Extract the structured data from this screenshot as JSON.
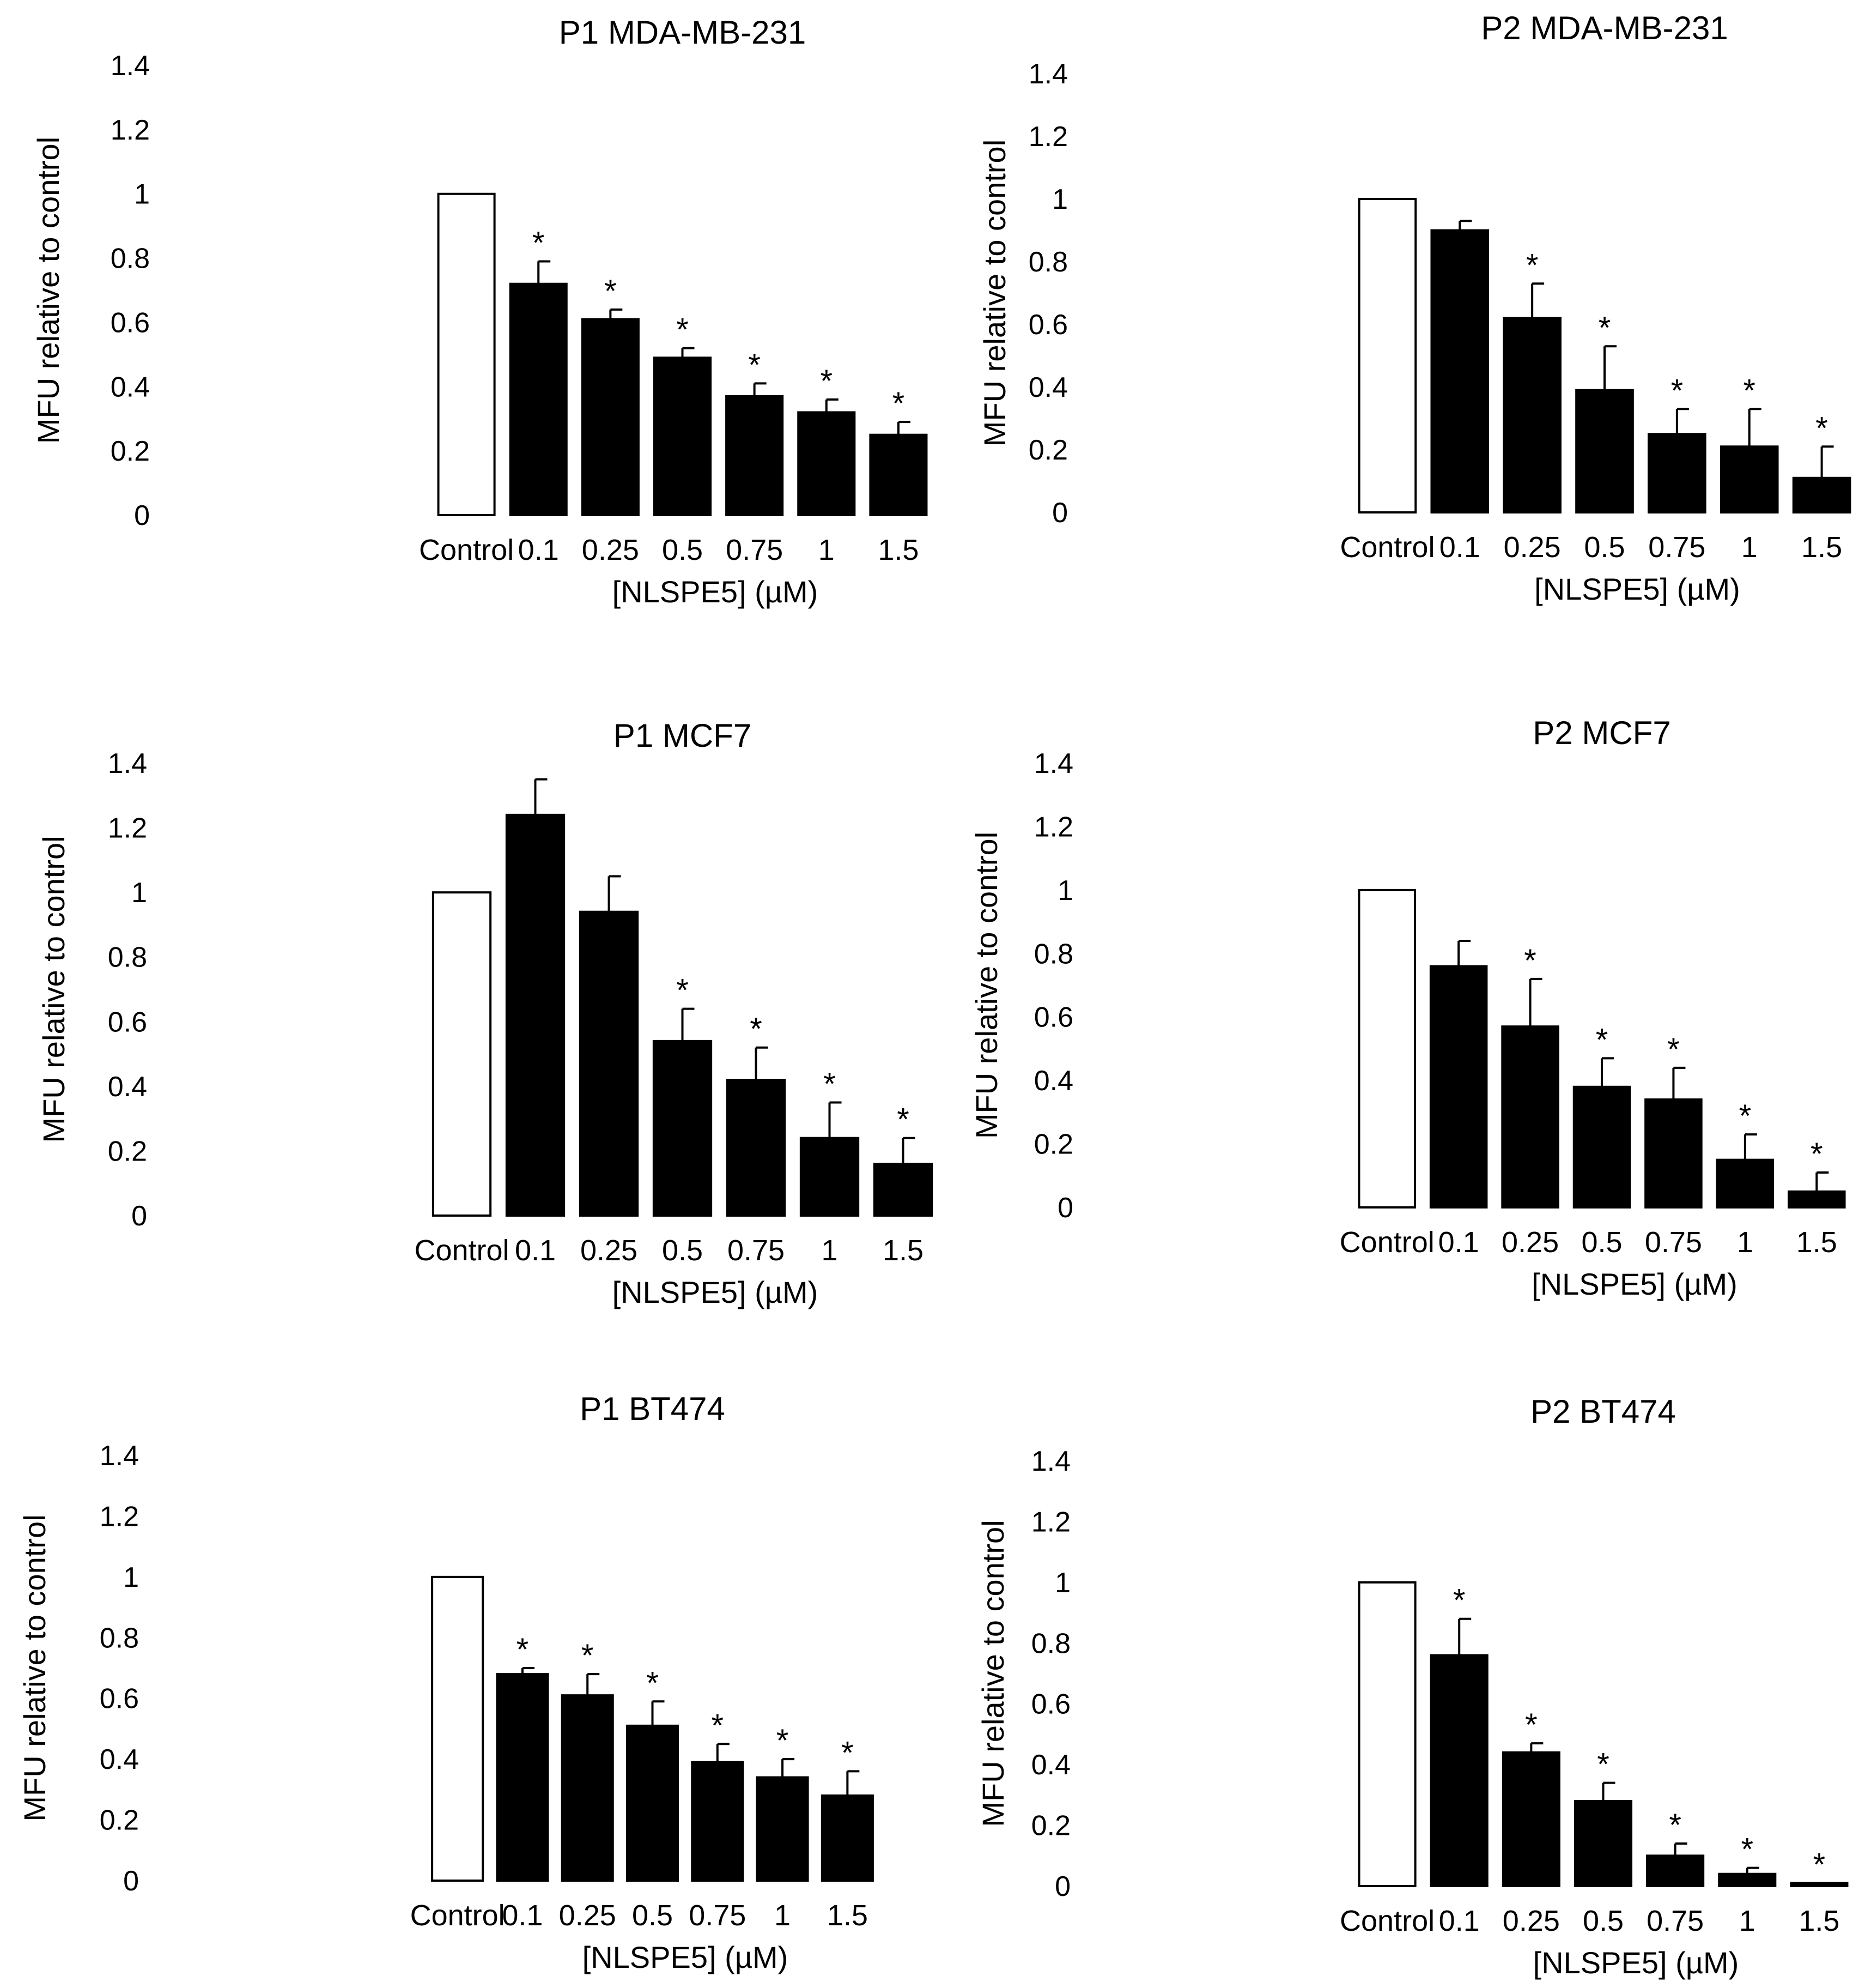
{
  "colors": {
    "control_fill": "#ffffff",
    "bar_fill": "#000000",
    "stroke": "#000000",
    "background": "#ffffff"
  },
  "chart_data": [
    {
      "id": "p1-mda",
      "type": "bar",
      "title": "P1 MDA-MB-231",
      "xlabel": "[NLSPE5] (µM)",
      "ylabel": "MFU relative to control",
      "ylim": [
        0,
        1.4
      ],
      "yticks": [
        "0",
        "0.2",
        "0.4",
        "0.6",
        "0.8",
        "1",
        "1.2",
        "1.4"
      ],
      "categories": [
        "Control",
        "0.1",
        "0.25",
        "0.5",
        "0.75",
        "1",
        "1.5"
      ],
      "values": [
        1.0,
        0.72,
        0.61,
        0.49,
        0.37,
        0.32,
        0.25
      ],
      "errors": [
        0,
        0.07,
        0.03,
        0.03,
        0.04,
        0.04,
        0.04
      ],
      "significant": [
        false,
        true,
        true,
        true,
        true,
        true,
        true
      ]
    },
    {
      "id": "p2-mda",
      "type": "bar",
      "title": "P2 MDA-MB-231",
      "xlabel": "[NLSPE5] (µM)",
      "ylabel": "MFU relative to control",
      "ylim": [
        0,
        1.4
      ],
      "yticks": [
        "0",
        "0.2",
        "0.4",
        "0.6",
        "0.8",
        "1",
        "1.2",
        "1.4"
      ],
      "categories": [
        "Control",
        "0.1",
        "0.25",
        "0.5",
        "0.75",
        "1",
        "1.5"
      ],
      "values": [
        1.0,
        0.9,
        0.62,
        0.39,
        0.25,
        0.21,
        0.11
      ],
      "errors": [
        0,
        0.03,
        0.11,
        0.14,
        0.08,
        0.12,
        0.1
      ],
      "significant": [
        false,
        false,
        true,
        true,
        true,
        true,
        true
      ]
    },
    {
      "id": "p1-mcf7",
      "type": "bar",
      "title": "P1 MCF7",
      "xlabel": "[NLSPE5] (µM)",
      "ylabel": "MFU relative to control",
      "ylim": [
        0,
        1.4
      ],
      "yticks": [
        "0",
        "0.2",
        "0.4",
        "0.6",
        "0.8",
        "1",
        "1.2",
        "1.4"
      ],
      "categories": [
        "Control",
        "0.1",
        "0.25",
        "0.5",
        "0.75",
        "1",
        "1.5"
      ],
      "values": [
        1.0,
        1.24,
        0.94,
        0.54,
        0.42,
        0.24,
        0.16
      ],
      "errors": [
        0,
        0.11,
        0.11,
        0.1,
        0.1,
        0.11,
        0.08
      ],
      "significant": [
        false,
        false,
        false,
        true,
        true,
        true,
        true
      ]
    },
    {
      "id": "p2-mcf7",
      "type": "bar",
      "title": "P2 MCF7",
      "xlabel": "[NLSPE5] (µM)",
      "ylabel": "MFU relative to control",
      "ylim": [
        0,
        1.4
      ],
      "yticks": [
        "0",
        "0.2",
        "0.4",
        "0.6",
        "0.8",
        "1",
        "1.2",
        "1.4"
      ],
      "categories": [
        "Control",
        "0.1",
        "0.25",
        "0.5",
        "0.75",
        "1",
        "1.5"
      ],
      "values": [
        1.0,
        0.76,
        0.57,
        0.38,
        0.34,
        0.15,
        0.05
      ],
      "errors": [
        0,
        0.08,
        0.15,
        0.09,
        0.1,
        0.08,
        0.06
      ],
      "significant": [
        false,
        false,
        true,
        true,
        true,
        true,
        true
      ]
    },
    {
      "id": "p1-bt474",
      "type": "bar",
      "title": "P1 BT474",
      "xlabel": "[NLSPE5] (µM)",
      "ylabel": "MFU relative to control",
      "ylim": [
        0,
        1.4
      ],
      "yticks": [
        "0",
        "0.2",
        "0.4",
        "0.6",
        "0.8",
        "1",
        "1.2",
        "1.4"
      ],
      "categories": [
        "Control",
        "0.1",
        "0.25",
        "0.5",
        "0.75",
        "1",
        "1.5"
      ],
      "values": [
        1.0,
        0.68,
        0.61,
        0.51,
        0.39,
        0.34,
        0.28
      ],
      "errors": [
        0,
        0.02,
        0.07,
        0.08,
        0.06,
        0.06,
        0.08
      ],
      "significant": [
        false,
        true,
        true,
        true,
        true,
        true,
        true
      ]
    },
    {
      "id": "p2-bt474",
      "type": "bar",
      "title": "P2 BT474",
      "xlabel": "[NLSPE5] (µM)",
      "ylabel": "MFU relative to control",
      "ylim": [
        0,
        1.4
      ],
      "yticks": [
        "0",
        "0.2",
        "0.4",
        "0.6",
        "0.8",
        "1",
        "1.2",
        "1.4"
      ],
      "categories": [
        "Control",
        "0.1",
        "0.25",
        "0.5",
        "0.75",
        "1",
        "1.5"
      ],
      "values": [
        1.0,
        0.76,
        0.44,
        0.28,
        0.1,
        0.04,
        0.01
      ],
      "errors": [
        0,
        0.12,
        0.03,
        0.06,
        0.04,
        0.02,
        0.0
      ],
      "significant": [
        false,
        true,
        true,
        true,
        true,
        true,
        true
      ]
    }
  ]
}
